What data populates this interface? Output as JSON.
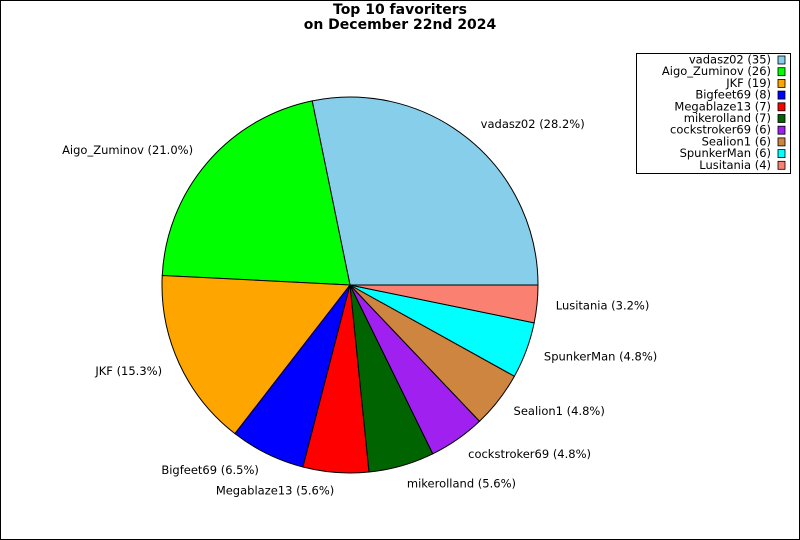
{
  "chart_data": {
    "type": "pie",
    "title_lines": [
      "Top 10 favoriters",
      "on December 22nd 2024"
    ],
    "values": [
      35,
      26,
      19,
      8,
      7,
      7,
      6,
      6,
      6,
      4
    ],
    "legend_labels": [
      "vadasz02 (35)",
      "Aigo_Zuminov (26)",
      "JKF (19)",
      "Bigfeet69 (8)",
      "Megablaze13 (7)",
      "mikerolland (7)",
      "cockstroker69 (6)",
      "Sealion1 (6)",
      "SpunkerMan (6)",
      "Lusitania (4)"
    ],
    "slice_labels": [
      "vadasz02 (28.2%)",
      "Aigo_Zuminov (21.0%)",
      "JKF (15.3%)",
      "Bigfeet69 (6.5%)",
      "Megablaze13 (5.6%)",
      "mikerolland (5.6%)",
      "cockstroker69 (4.8%)",
      "Sealion1 (4.8%)",
      "SpunkerMan (4.8%)",
      "Lusitania (3.2%)"
    ],
    "colors": [
      "#87ceeb",
      "#00ff00",
      "#ffa500",
      "#0000ff",
      "#ff0000",
      "#006400",
      "#a020f0",
      "#cd853f",
      "#00ffff",
      "#fa8072"
    ],
    "legend": "upper right"
  }
}
